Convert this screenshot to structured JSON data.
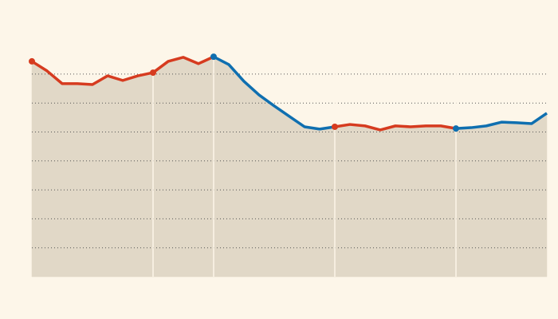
{
  "chart_data": {
    "type": "line",
    "x": [
      0,
      1,
      2,
      3,
      4,
      5,
      6,
      7,
      8,
      9,
      10,
      11,
      12,
      13,
      14,
      15,
      16,
      17,
      18,
      19,
      20,
      21,
      22,
      23,
      24,
      25,
      26,
      27,
      28,
      29,
      30,
      31,
      32,
      33,
      34
    ],
    "xlim": [
      0,
      34
    ],
    "xticks": [
      8,
      12,
      20,
      28
    ],
    "ylim": [
      0,
      8
    ],
    "yticks": [
      1,
      2,
      3,
      4,
      5,
      6,
      7
    ],
    "grid": true,
    "area_color": "#e1d8c7",
    "series": [
      {
        "color": "#d63b1f",
        "markers": [
          0,
          8,
          20
        ],
        "values": [
          7.44,
          7.11,
          6.67,
          6.67,
          6.64,
          6.94,
          6.78,
          6.94,
          7.05,
          7.44,
          7.58,
          7.36,
          7.6,
          null,
          null,
          null,
          null,
          null,
          null,
          null,
          5.18,
          5.26,
          5.21,
          5.07,
          5.21,
          5.18,
          5.21,
          5.21,
          5.12,
          null,
          null,
          null,
          null,
          null,
          null
        ]
      },
      {
        "color": "#0f6fb0",
        "markers": [
          12,
          28
        ],
        "values": [
          null,
          null,
          null,
          null,
          null,
          null,
          null,
          null,
          null,
          null,
          null,
          null,
          7.6,
          7.33,
          6.75,
          6.28,
          5.9,
          5.54,
          5.18,
          5.1,
          5.18,
          null,
          null,
          null,
          null,
          null,
          null,
          null,
          5.12,
          5.15,
          5.21,
          5.34,
          5.32,
          5.29,
          5.65
        ]
      }
    ]
  }
}
